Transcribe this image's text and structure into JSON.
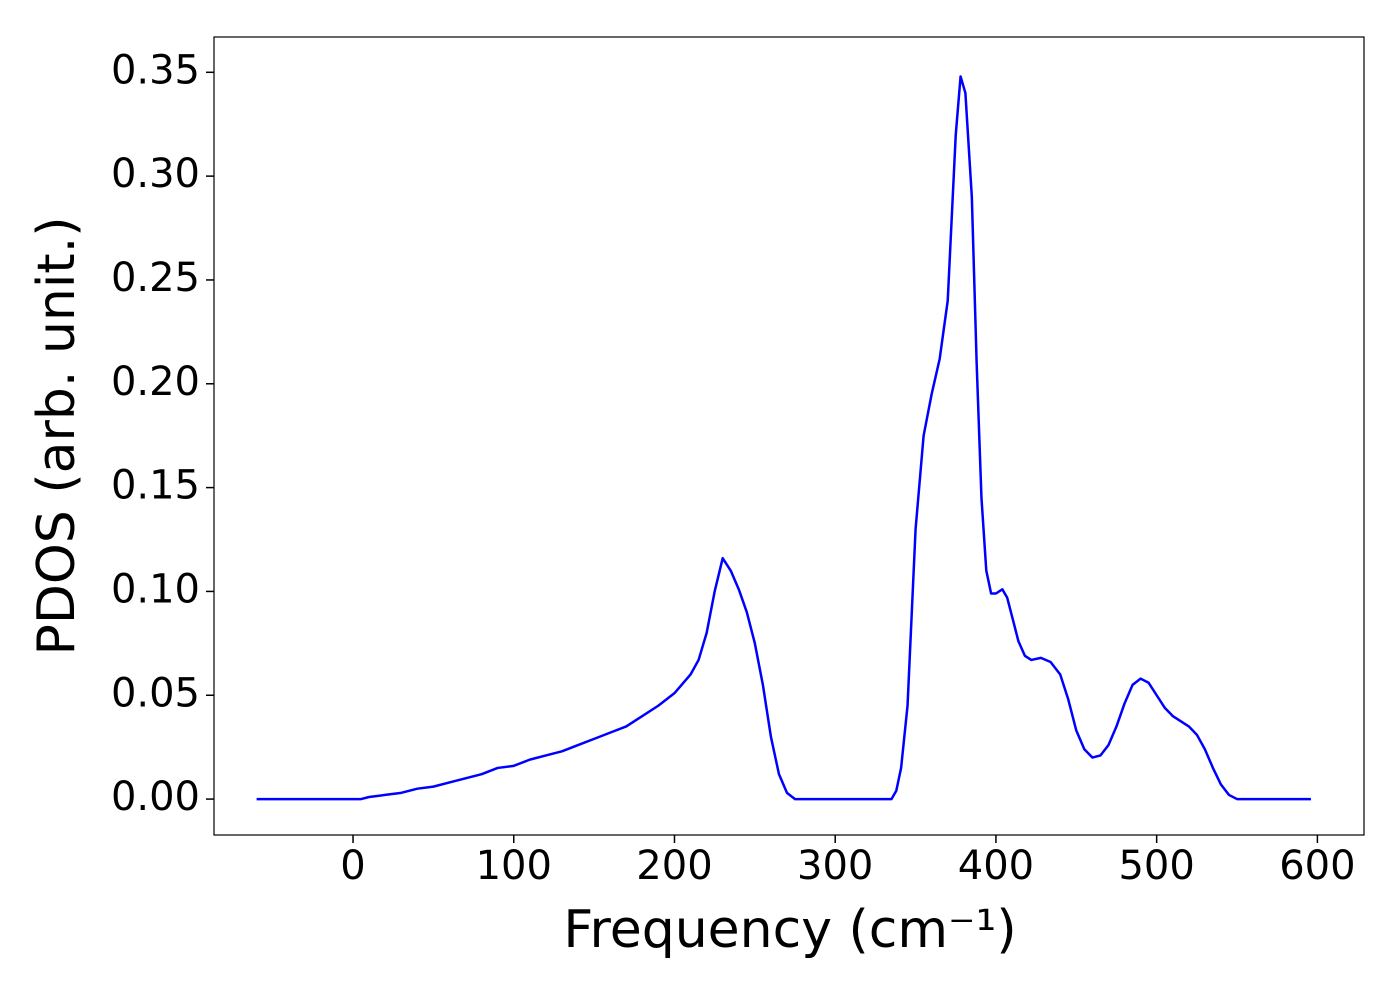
{
  "chart_data": {
    "type": "line",
    "xlabel": "Frequency (cm⁻¹)",
    "ylabel": "PDOS (arb. unit.)",
    "xlim": [
      -86.5,
      629
    ],
    "ylim": [
      -0.0173,
      0.367
    ],
    "xticks": [
      0,
      100,
      200,
      300,
      400,
      500,
      600
    ],
    "yticks": [
      {
        "value": 0,
        "label": "0.00"
      },
      0.05,
      {
        "value": 0.1,
        "label": "0.10"
      },
      0.15,
      {
        "value": 0.2,
        "label": "0.20"
      },
      0.25,
      {
        "value": 0.3,
        "label": "0.30"
      },
      0.35
    ],
    "series": [
      {
        "color": "#0000ff",
        "x": [
          -60,
          -40,
          -20,
          0,
          5,
          10,
          20,
          30,
          40,
          50,
          60,
          70,
          80,
          90,
          100,
          110,
          120,
          130,
          140,
          150,
          160,
          170,
          180,
          190,
          200,
          210,
          215,
          220,
          225,
          230,
          235,
          240,
          245,
          250,
          255,
          260,
          265,
          270,
          275,
          300,
          335,
          338,
          341,
          345,
          350,
          355,
          360,
          365,
          370,
          375,
          378,
          381,
          385,
          388,
          391,
          394,
          397,
          400,
          404,
          407,
          410,
          414,
          418,
          422,
          428,
          434,
          440,
          445,
          450,
          455,
          460,
          465,
          470,
          475,
          480,
          485,
          490,
          495,
          500,
          505,
          510,
          520,
          525,
          530,
          535,
          540,
          545,
          550,
          575,
          596
        ],
        "values": [
          0,
          0,
          0,
          0,
          0,
          0.001,
          0.002,
          0.003,
          0.005,
          0.006,
          0.008,
          0.01,
          0.012,
          0.015,
          0.016,
          0.019,
          0.021,
          0.023,
          0.026,
          0.029,
          0.032,
          0.035,
          0.04,
          0.045,
          0.051,
          0.06,
          0.067,
          0.08,
          0.1,
          0.116,
          0.11,
          0.101,
          0.09,
          0.075,
          0.055,
          0.03,
          0.012,
          0.003,
          0,
          0,
          0,
          0.004,
          0.015,
          0.045,
          0.13,
          0.175,
          0.195,
          0.212,
          0.24,
          0.32,
          0.348,
          0.34,
          0.29,
          0.21,
          0.145,
          0.11,
          0.099,
          0.099,
          0.101,
          0.097,
          0.088,
          0.076,
          0.069,
          0.067,
          0.068,
          0.066,
          0.06,
          0.048,
          0.033,
          0.024,
          0.02,
          0.021,
          0.026,
          0.035,
          0.046,
          0.055,
          0.058,
          0.056,
          0.05,
          0.044,
          0.04,
          0.035,
          0.031,
          0.024,
          0.015,
          0.007,
          0.002,
          0,
          0,
          0
        ]
      }
    ]
  }
}
